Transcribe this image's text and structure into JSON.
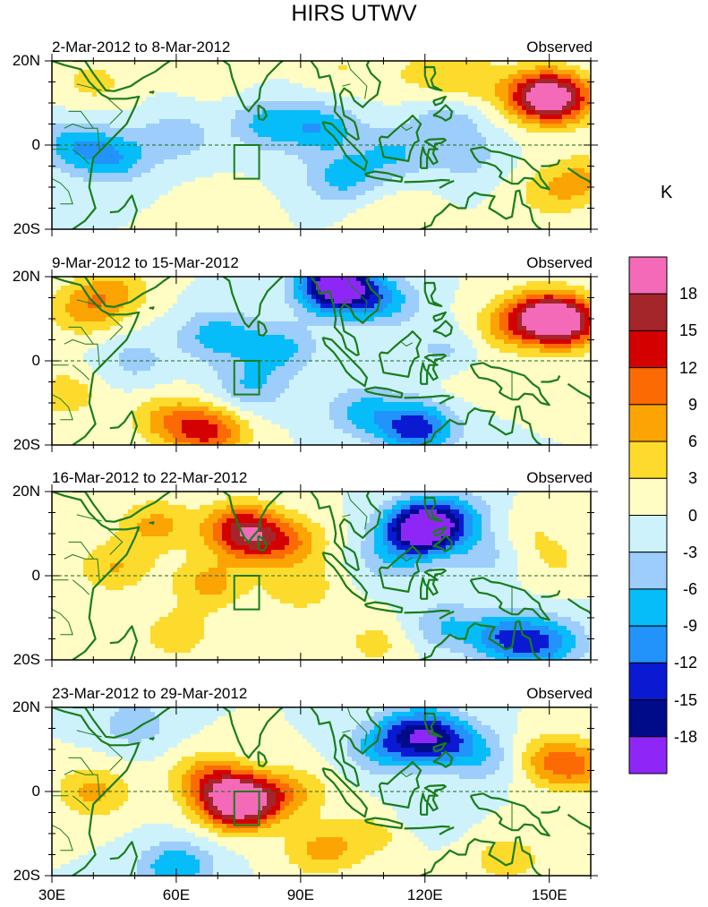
{
  "chart_data": {
    "type": "heatmap",
    "title": "HIRS UTWV",
    "colorbar": {
      "unit": "K",
      "levels": [
        18,
        15,
        12,
        9,
        6,
        3,
        0,
        -3,
        -6,
        -9,
        -12,
        -15,
        -18
      ],
      "colors": [
        "#f46ab8",
        "#a4262a",
        "#d40000",
        "#fc6a04",
        "#fca404",
        "#fddb2c",
        "#fffcc4",
        "#cdf2fc",
        "#9ccdfb",
        "#06bdfa",
        "#2293fa",
        "#0a1ad2",
        "#000b8a",
        "#8e26f8"
      ]
    },
    "x_ticks": [
      "30E",
      "60E",
      "90E",
      "120E",
      "150E"
    ],
    "y_ticks": [
      "20N",
      "0",
      "20S"
    ],
    "panels": [
      {
        "period": "2-Mar-2012 to 8-Mar-2012",
        "label": "Observed",
        "blobs": [
          {
            "lon": 40,
            "lat": 15,
            "v": 4
          },
          {
            "lon": 70,
            "lat": 17,
            "v": 2
          },
          {
            "lon": 100,
            "lat": 18,
            "v": 3
          },
          {
            "lon": 118,
            "lat": 17,
            "v": 3
          },
          {
            "lon": 147,
            "lat": 12,
            "v": 11
          },
          {
            "lon": 152,
            "lat": 11,
            "v": 15
          },
          {
            "lon": 130,
            "lat": 16,
            "v": 5
          },
          {
            "lon": 158,
            "lat": -8,
            "v": 6
          },
          {
            "lon": 150,
            "lat": -12,
            "v": 4
          },
          {
            "lon": 70,
            "lat": -17,
            "v": 3
          },
          {
            "lon": 112,
            "lat": -17,
            "v": 3
          },
          {
            "lon": 35,
            "lat": 0,
            "v": -7
          },
          {
            "lon": 45,
            "lat": -3,
            "v": -8
          },
          {
            "lon": 60,
            "lat": 2,
            "v": -5
          },
          {
            "lon": 82,
            "lat": 5,
            "v": -7
          },
          {
            "lon": 95,
            "lat": 4,
            "v": -8
          },
          {
            "lon": 112,
            "lat": -2,
            "v": -6
          },
          {
            "lon": 100,
            "lat": -8,
            "v": -7
          },
          {
            "lon": 125,
            "lat": 5,
            "v": -5
          },
          {
            "lon": 130,
            "lat": -3,
            "v": -4
          }
        ]
      },
      {
        "period": "9-Mar-2012 to 15-Mar-2012",
        "label": "Observed",
        "blobs": [
          {
            "lon": 38,
            "lat": 12,
            "v": 7
          },
          {
            "lon": 45,
            "lat": 17,
            "v": 6
          },
          {
            "lon": 33,
            "lat": -8,
            "v": 5
          },
          {
            "lon": 148,
            "lat": 11,
            "v": 12
          },
          {
            "lon": 154,
            "lat": 9,
            "v": 17
          },
          {
            "lon": 140,
            "lat": 8,
            "v": 6
          },
          {
            "lon": 68,
            "lat": -17,
            "v": 12
          },
          {
            "lon": 58,
            "lat": -14,
            "v": 7
          },
          {
            "lon": 130,
            "lat": -4,
            "v": 2
          },
          {
            "lon": 100,
            "lat": 17,
            "v": -10
          },
          {
            "lon": 98,
            "lat": 18,
            "v": -14
          },
          {
            "lon": 110,
            "lat": 14,
            "v": -7
          },
          {
            "lon": 70,
            "lat": 6,
            "v": -8
          },
          {
            "lon": 85,
            "lat": 3,
            "v": -7
          },
          {
            "lon": 78,
            "lat": -6,
            "v": -6
          },
          {
            "lon": 50,
            "lat": 0,
            "v": -4
          },
          {
            "lon": 118,
            "lat": -16,
            "v": -14
          },
          {
            "lon": 105,
            "lat": -12,
            "v": -7
          },
          {
            "lon": 125,
            "lat": 2,
            "v": -4
          }
        ]
      },
      {
        "period": "16-Mar-2012 to 22-Mar-2012",
        "label": "Observed",
        "blobs": [
          {
            "lon": 55,
            "lat": 12,
            "v": 7
          },
          {
            "lon": 75,
            "lat": 12,
            "v": 8
          },
          {
            "lon": 78,
            "lat": 9,
            "v": 11
          },
          {
            "lon": 88,
            "lat": 8,
            "v": 7
          },
          {
            "lon": 45,
            "lat": 2,
            "v": 6
          },
          {
            "lon": 68,
            "lat": -2,
            "v": 7
          },
          {
            "lon": 90,
            "lat": -3,
            "v": 5
          },
          {
            "lon": 60,
            "lat": -14,
            "v": 5
          },
          {
            "lon": 145,
            "lat": 10,
            "v": 3
          },
          {
            "lon": 152,
            "lat": 3,
            "v": 3
          },
          {
            "lon": 108,
            "lat": -16,
            "v": 4
          },
          {
            "lon": 120,
            "lat": 12,
            "v": -9
          },
          {
            "lon": 119,
            "lat": 11,
            "v": -15
          },
          {
            "lon": 128,
            "lat": 14,
            "v": -6
          },
          {
            "lon": 112,
            "lat": 4,
            "v": -5
          },
          {
            "lon": 135,
            "lat": 5,
            "v": -4
          },
          {
            "lon": 140,
            "lat": -15,
            "v": -11
          },
          {
            "lon": 150,
            "lat": -16,
            "v": -9
          },
          {
            "lon": 125,
            "lat": -12,
            "v": -6
          }
        ]
      },
      {
        "period": "23-Mar-2012 to 29-Mar-2012",
        "label": "Observed",
        "blobs": [
          {
            "lon": 40,
            "lat": 0,
            "v": 7
          },
          {
            "lon": 68,
            "lat": 3,
            "v": 9
          },
          {
            "lon": 76,
            "lat": -2,
            "v": 11
          },
          {
            "lon": 75,
            "lat": -3,
            "v": 14
          },
          {
            "lon": 88,
            "lat": 0,
            "v": 6
          },
          {
            "lon": 95,
            "lat": -14,
            "v": 7
          },
          {
            "lon": 108,
            "lat": -10,
            "v": 4
          },
          {
            "lon": 140,
            "lat": -16,
            "v": 5
          },
          {
            "lon": 156,
            "lat": 6,
            "v": 9
          },
          {
            "lon": 148,
            "lat": 8,
            "v": 5
          },
          {
            "lon": 118,
            "lat": 14,
            "v": -12
          },
          {
            "lon": 125,
            "lat": 12,
            "v": -9
          },
          {
            "lon": 110,
            "lat": 10,
            "v": -7
          },
          {
            "lon": 135,
            "lat": 8,
            "v": -5
          },
          {
            "lon": 50,
            "lat": 16,
            "v": -5
          },
          {
            "lon": 60,
            "lat": -18,
            "v": -9
          },
          {
            "lon": 120,
            "lat": -5,
            "v": -3
          }
        ]
      }
    ]
  }
}
